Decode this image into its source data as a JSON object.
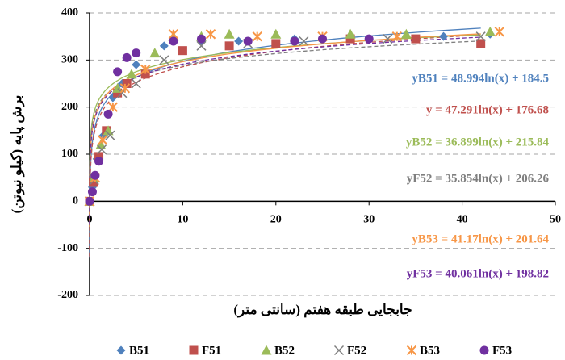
{
  "chart_data": {
    "type": "scatter",
    "x_label": "جابجایی طبقه هفتم (سانتی متر)",
    "y_label": "برش پایه (کیلو نیوتن)",
    "xlim": [
      0,
      50
    ],
    "ylim": [
      -200,
      400
    ],
    "xticks": [
      0,
      10,
      20,
      30,
      40,
      50
    ],
    "yticks": [
      -200,
      -100,
      0,
      100,
      200,
      300,
      400
    ],
    "grid": true,
    "legend": "bottom",
    "series": [
      {
        "name": "B51",
        "color": "#4f81bd",
        "marker": "diamond",
        "x": [
          0,
          0.3,
          0.8,
          1.5,
          2.5,
          3.5,
          5,
          8,
          12,
          16,
          22,
          30,
          38,
          43
        ],
        "values": [
          0,
          30,
          90,
          140,
          220,
          250,
          290,
          330,
          340,
          340,
          345,
          345,
          350,
          355
        ],
        "trendline": {
          "label": "yB51 = 48.994ln(x) + 184.5",
          "a": 48.994,
          "b": 184.5
        }
      },
      {
        "name": "F51",
        "color": "#c0504d",
        "marker": "square",
        "x": [
          0,
          0.4,
          1,
          1.8,
          3,
          4,
          6,
          10,
          15,
          20,
          28,
          35,
          42
        ],
        "values": [
          0,
          40,
          95,
          150,
          230,
          250,
          270,
          320,
          330,
          335,
          345,
          345,
          335
        ],
        "trendline": {
          "label": "y = 47.291ln(x) + 176.68",
          "a": 47.291,
          "b": 176.68
        }
      },
      {
        "name": "B52",
        "color": "#9bbb59",
        "marker": "triangle",
        "x": [
          0,
          0.5,
          1.2,
          2,
          3,
          4.5,
          7,
          9,
          12,
          15,
          20,
          28,
          34,
          43
        ],
        "values": [
          0,
          50,
          120,
          150,
          240,
          270,
          315,
          350,
          350,
          355,
          355,
          355,
          355,
          360
        ],
        "trendline": {
          "label": "yB52 = 36.899ln(x) + 215.84",
          "a": 36.899,
          "b": 215.84
        }
      },
      {
        "name": "F52",
        "color": "#7f7f7f",
        "marker": "x",
        "x": [
          0,
          0.5,
          1.3,
          2.2,
          3.5,
          5,
          8,
          12,
          17,
          23,
          32,
          42
        ],
        "values": [
          0,
          45,
          110,
          140,
          230,
          250,
          300,
          330,
          335,
          340,
          345,
          350
        ],
        "trendline": {
          "label": "yF52 = 35.854ln(x) + 206.26",
          "a": 35.854,
          "b": 206.26
        }
      },
      {
        "name": "B53",
        "color": "#f79646",
        "marker": "asterisk",
        "x": [
          0,
          0.6,
          1.4,
          2.5,
          3.8,
          6,
          9,
          13,
          18,
          25,
          33,
          44
        ],
        "values": [
          0,
          50,
          130,
          200,
          240,
          280,
          355,
          355,
          350,
          350,
          350,
          360
        ],
        "trendline": {
          "label": "yB53 = 41.17ln(x) + 201.64",
          "a": 41.17,
          "b": 201.64
        }
      },
      {
        "name": "F53",
        "color": "#7030a0",
        "marker": "circle",
        "x": [
          0,
          0.3,
          0.6,
          1,
          2,
          3,
          4,
          5,
          9,
          12,
          17,
          22,
          25,
          30
        ],
        "values": [
          0,
          20,
          55,
          85,
          185,
          275,
          305,
          315,
          340,
          345,
          340,
          340,
          345,
          345
        ],
        "trendline": {
          "label": "yF53 = 40.061ln(x) + 198.82",
          "a": 40.061,
          "b": 198.82
        }
      }
    ]
  }
}
